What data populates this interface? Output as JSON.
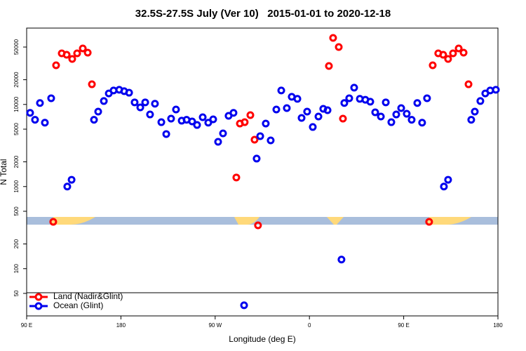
{
  "chart_data": {
    "type": "scatter",
    "title": "32.5S-27.5S July (Ver 10)   2015-01-01 to 2020-12-18",
    "xlabel": "Longitude (deg E)",
    "ylabel": "N Total",
    "xlim": [
      90,
      540
    ],
    "xticks": [
      {
        "value": 90,
        "label": "90 E"
      },
      180,
      {
        "value": 270,
        "label": "90 W"
      },
      {
        "value": 360,
        "label": "0"
      },
      {
        "value": 450,
        "label": "90 E"
      },
      {
        "value": 540,
        "label": "180"
      }
    ],
    "ylim": [
      26.6,
      85100
    ],
    "ylog": true,
    "yticks": [
      50,
      100,
      200,
      500,
      1000,
      2000,
      5000,
      10000,
      20000,
      50000
    ],
    "legend": "bottom-left",
    "series": [
      {
        "name": "Land (Nadir&Glint)",
        "color": "#ff0000",
        "x": [
          115.4,
          118.1,
          123.5,
          128.2,
          133.5,
          138.2,
          143.6,
          148.3,
          152.3,
          290.2,
          293.6,
          298.2,
          303.6,
          307.6,
          310.9,
          378.6,
          382.6,
          388.0,
          392.0,
          474.3,
          477.7,
          483.0,
          487.7,
          492.4,
          497.1,
          502.5,
          507.2,
          511.9
        ],
        "values": [
          372,
          30000,
          41900,
          40300,
          35800,
          41900,
          48100,
          42700,
          17600,
          1290,
          5850,
          6080,
          7410,
          3720,
          337,
          29400,
          64600,
          50000,
          6720,
          372,
          30000,
          41900,
          40300,
          35800,
          41900,
          48100,
          42700,
          17600
        ]
      },
      {
        "name": "Ocean (Glint)",
        "color": "#0000ee",
        "x": [
          93.3,
          98.0,
          102.7,
          107.4,
          113.4,
          128.8,
          132.9,
          154.3,
          158.3,
          163.7,
          168.4,
          173.0,
          178.4,
          183.1,
          187.8,
          193.1,
          198.5,
          203.2,
          207.8,
          212.5,
          218.6,
          223.3,
          227.9,
          232.6,
          238.0,
          242.7,
          248.0,
          252.7,
          258.1,
          263.4,
          268.1,
          272.8,
          277.5,
          282.8,
          287.5,
          309.6,
          313.0,
          318.3,
          323.0,
          328.4,
          333.1,
          338.4,
          343.1,
          348.5,
          352.5,
          357.8,
          363.2,
          368.6,
          373.2,
          377.3,
          390.6,
          393.3,
          398.0,
          402.7,
          408.1,
          413.4,
          418.1,
          422.8,
          428.2,
          432.9,
          438.2,
          442.9,
          447.6,
          452.9,
          457.6,
          463.0,
          467.6,
          472.3,
          488.4,
          492.4,
          514.5,
          517.9,
          523.2,
          527.9,
          532.6,
          538.0,
          297.6
        ],
        "values": [
          7900,
          6500,
          10400,
          6000,
          11900,
          1000,
          1210,
          6500,
          8180,
          11000,
          13600,
          14800,
          15100,
          14500,
          13900,
          10600,
          9200,
          10600,
          7550,
          10200,
          6080,
          4360,
          6720,
          8670,
          6340,
          6500,
          6210,
          5620,
          6980,
          6000,
          6590,
          3510,
          4440,
          7260,
          7900,
          2190,
          4110,
          5850,
          3650,
          8670,
          14800,
          9020,
          12400,
          11700,
          6850,
          8180,
          5310,
          7130,
          8850,
          8510,
          129,
          10400,
          11900,
          16000,
          11700,
          11400,
          10800,
          8020,
          7130,
          10600,
          6080,
          7550,
          9020,
          7700,
          6500,
          10400,
          6000,
          11900,
          1000,
          1210,
          6500,
          8180,
          11000,
          13600,
          14800,
          15100,
          35.8
        ]
      }
    ]
  }
}
